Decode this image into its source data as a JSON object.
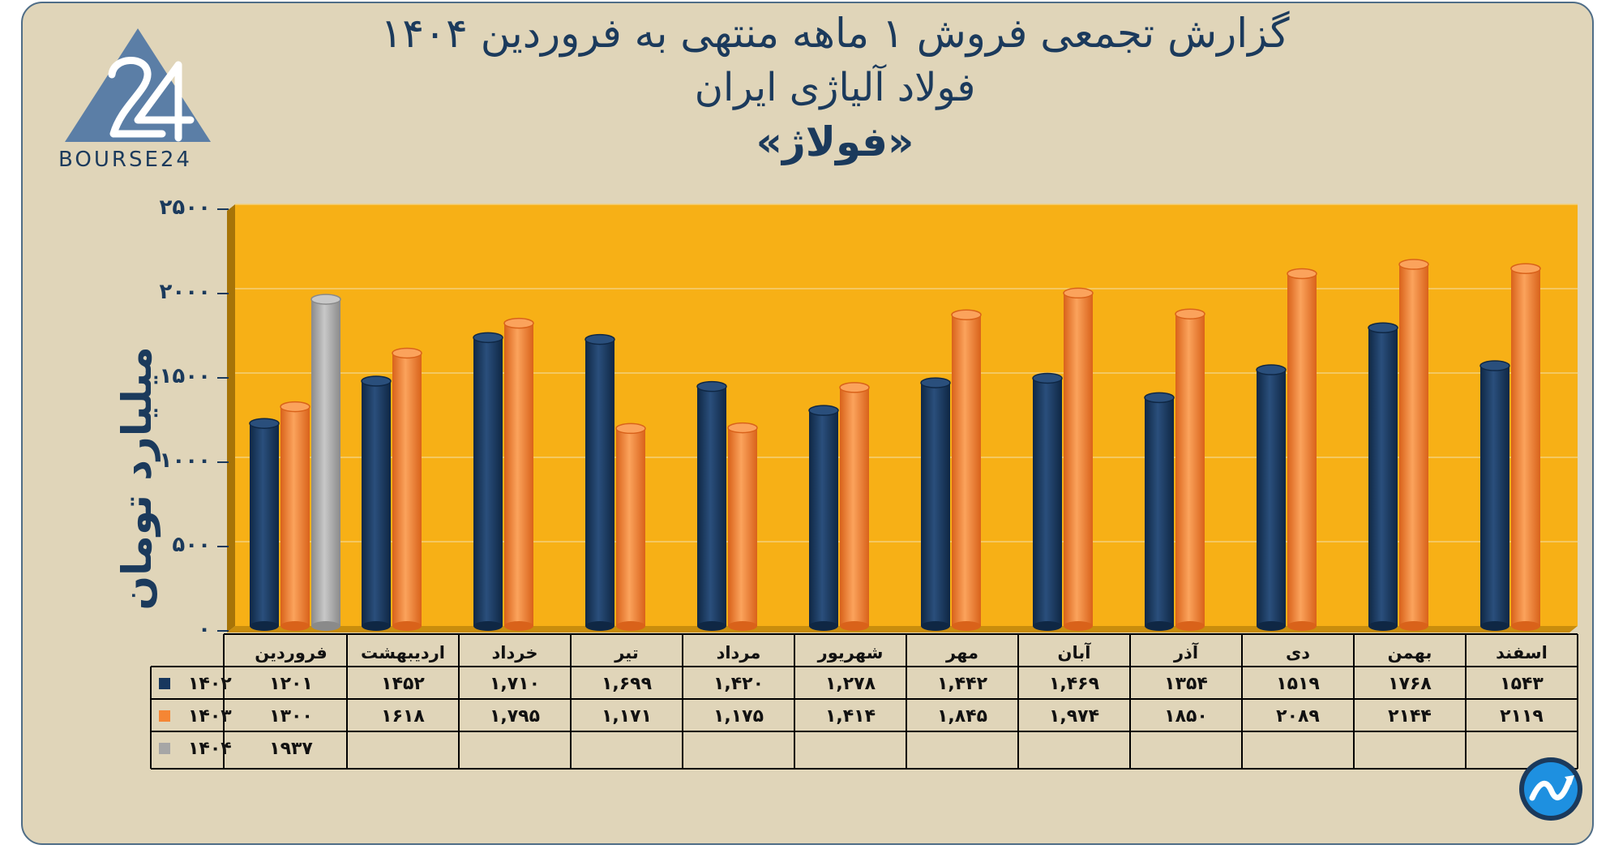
{
  "header": {
    "title_line1": "گزارش تجمعی فروش ۱ ماهه منتهی به فروردین ۱۴۰۴",
    "title_line2": "فولاد آلیاژی ایران",
    "title_line3": "«فولاژ»"
  },
  "logo": {
    "text": "BOURSE24",
    "icon": "bourse24-logo"
  },
  "badge": {
    "icon": "trend-chart-icon"
  },
  "colors": {
    "background": "#E0D5B9",
    "plot_area": "#F7B016",
    "series_1402": "#17375E",
    "series_1403": "#F58634",
    "series_1404": "#A6A6A6",
    "text": "#1B3A5C"
  },
  "chart_data": {
    "type": "bar",
    "ylabel": "میلیارد تومان",
    "ylim": [
      0,
      2500
    ],
    "yticks": [
      0,
      500,
      1000,
      1500,
      2000,
      2500
    ],
    "ytick_labels": [
      "۰",
      "۵۰۰",
      "۱۰۰۰",
      "۱۵۰۰",
      "۲۰۰۰",
      "۲۵۰۰"
    ],
    "grid": true,
    "legend": "table-left",
    "categories": [
      "فروردین",
      "اردیبهشت",
      "خرداد",
      "تیر",
      "مرداد",
      "شهریور",
      "مهر",
      "آبان",
      "آذر",
      "دی",
      "بهمن",
      "اسفند"
    ],
    "series": [
      {
        "name": "۱۴۰۲",
        "color": "#17375E",
        "values": [
          1201,
          1452,
          1710,
          1699,
          1420,
          1278,
          1442,
          1469,
          1354,
          1519,
          1768,
          1543
        ],
        "labels": [
          "۱۲۰۱",
          "۱۴۵۲",
          "۱,۷۱۰",
          "۱,۶۹۹",
          "۱,۴۲۰",
          "۱,۲۷۸",
          "۱,۴۴۲",
          "۱,۴۶۹",
          "۱۳۵۴",
          "۱۵۱۹",
          "۱۷۶۸",
          "۱۵۴۳"
        ]
      },
      {
        "name": "۱۴۰۳",
        "color": "#F58634",
        "values": [
          1300,
          1618,
          1795,
          1171,
          1175,
          1414,
          1845,
          1974,
          1850,
          2089,
          2144,
          2119
        ],
        "labels": [
          "۱۳۰۰",
          "۱۶۱۸",
          "۱,۷۹۵",
          "۱,۱۷۱",
          "۱,۱۷۵",
          "۱,۴۱۴",
          "۱,۸۴۵",
          "۱,۹۷۴",
          "۱۸۵۰",
          "۲۰۸۹",
          "۲۱۴۴",
          "۲۱۱۹"
        ]
      },
      {
        "name": "۱۴۰۴",
        "color": "#A6A6A6",
        "values": [
          1937,
          null,
          null,
          null,
          null,
          null,
          null,
          null,
          null,
          null,
          null,
          null
        ],
        "labels": [
          "۱۹۳۷",
          "",
          "",
          "",
          "",
          "",
          "",
          "",
          "",
          "",
          "",
          ""
        ]
      }
    ]
  }
}
